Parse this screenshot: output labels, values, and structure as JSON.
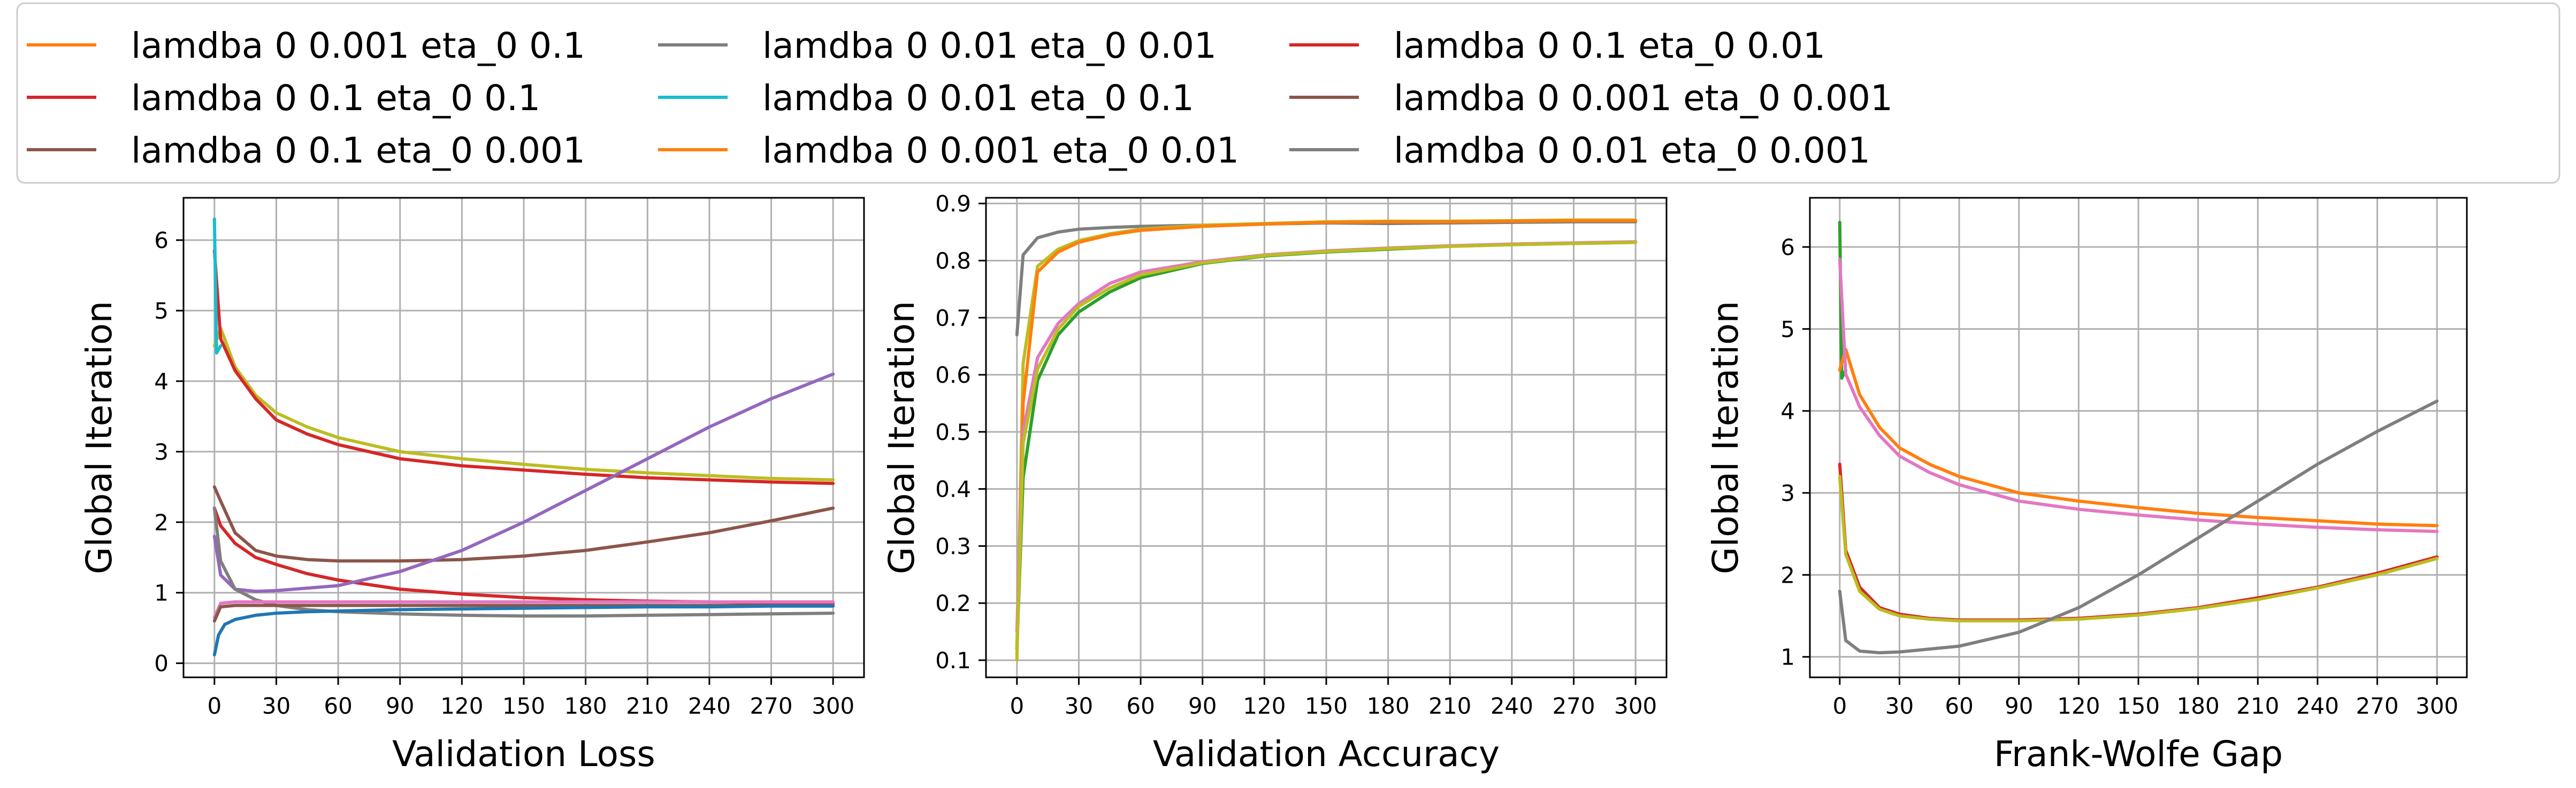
{
  "legend": {
    "placement": "top",
    "entries": [
      {
        "label": "lamdba 0 0.001 eta_0 0.1",
        "color": "#ff7f0e"
      },
      {
        "label": "lamdba 0 0.1 eta_0 0.1",
        "color": "#d62728"
      },
      {
        "label": "lamdba 0 0.1 eta_0 0.001",
        "color": "#8c564b"
      },
      {
        "label": "lamdba 0 0.01 eta_0 0.01",
        "color": "#7f7f7f"
      },
      {
        "label": "lamdba 0 0.01 eta_0 0.1",
        "color": "#17becf"
      },
      {
        "label": "lamdba 0 0.001 eta_0 0.01",
        "color": "#ff7f0e"
      },
      {
        "label": "lamdba 0 0.1 eta_0 0.01",
        "color": "#d62728"
      },
      {
        "label": "lamdba 0 0.001 eta_0 0.001",
        "color": "#8c564b"
      },
      {
        "label": "lamdba 0 0.01 eta_0 0.001",
        "color": "#7f7f7f"
      }
    ]
  },
  "chart_data": [
    {
      "type": "line",
      "xlabel": "Validation Loss",
      "ylabel": "Global Iteration",
      "xlim": [
        -15,
        315
      ],
      "ylim": [
        -0.2,
        6.6
      ],
      "xticks": [
        0,
        30,
        60,
        90,
        120,
        150,
        180,
        210,
        240,
        270,
        300
      ],
      "yticks": [
        0,
        1,
        2,
        3,
        4,
        5,
        6
      ],
      "grid": true,
      "series": [
        {
          "color": "#bcbd22",
          "x": [
            0,
            3,
            10,
            20,
            30,
            45,
            60,
            90,
            120,
            150,
            180,
            210,
            240,
            270,
            300
          ],
          "y": [
            4.5,
            4.75,
            4.2,
            3.8,
            3.55,
            3.35,
            3.2,
            3.0,
            2.9,
            2.82,
            2.75,
            2.7,
            2.66,
            2.62,
            2.6
          ]
        },
        {
          "color": "#d62728",
          "x": [
            0,
            3,
            10,
            20,
            30,
            45,
            60,
            90,
            120,
            150,
            180,
            210,
            240,
            270,
            300
          ],
          "y": [
            5.85,
            4.6,
            4.15,
            3.75,
            3.45,
            3.25,
            3.1,
            2.9,
            2.8,
            2.74,
            2.68,
            2.63,
            2.6,
            2.57,
            2.55
          ]
        },
        {
          "color": "#17becf",
          "x": [
            0,
            1,
            3
          ],
          "y": [
            6.3,
            4.4,
            4.5
          ]
        },
        {
          "color": "#8c564b",
          "x": [
            0,
            3,
            10,
            20,
            30,
            45,
            60,
            90,
            120,
            150,
            180,
            210,
            240,
            270,
            300
          ],
          "y": [
            2.5,
            2.3,
            1.85,
            1.6,
            1.52,
            1.47,
            1.45,
            1.45,
            1.47,
            1.52,
            1.6,
            1.72,
            1.85,
            2.02,
            2.2
          ]
        },
        {
          "color": "#d62728",
          "x": [
            0,
            3,
            10,
            20,
            30,
            45,
            60,
            90,
            120,
            150,
            180,
            210,
            240,
            270,
            300
          ],
          "y": [
            2.2,
            1.95,
            1.7,
            1.5,
            1.4,
            1.27,
            1.18,
            1.05,
            0.98,
            0.93,
            0.9,
            0.88,
            0.87,
            0.86,
            0.85
          ]
        },
        {
          "color": "#9467bd",
          "x": [
            0,
            3,
            10,
            20,
            30,
            60,
            90,
            120,
            150,
            180,
            210,
            240,
            270,
            300
          ],
          "y": [
            1.8,
            1.25,
            1.05,
            1.02,
            1.03,
            1.1,
            1.3,
            1.6,
            2.0,
            2.45,
            2.9,
            3.35,
            3.75,
            4.1
          ]
        },
        {
          "color": "#7f7f7f",
          "x": [
            0,
            3,
            10,
            20,
            30,
            45,
            60,
            90,
            120,
            150,
            180,
            210,
            240,
            270,
            300
          ],
          "y": [
            2.2,
            1.45,
            1.05,
            0.9,
            0.82,
            0.76,
            0.73,
            0.7,
            0.68,
            0.67,
            0.67,
            0.68,
            0.69,
            0.7,
            0.71
          ]
        },
        {
          "color": "#e377c2",
          "x": [
            0,
            3,
            10,
            20,
            30,
            60,
            90,
            120,
            150,
            180,
            210,
            240,
            270,
            300
          ],
          "y": [
            0.65,
            0.85,
            0.87,
            0.87,
            0.87,
            0.87,
            0.87,
            0.87,
            0.87,
            0.87,
            0.87,
            0.87,
            0.87,
            0.87
          ]
        },
        {
          "color": "#8c564b",
          "x": [
            0,
            3,
            10,
            20,
            30,
            60,
            90,
            120,
            150,
            180,
            210,
            240,
            270,
            300
          ],
          "y": [
            0.6,
            0.8,
            0.82,
            0.82,
            0.82,
            0.82,
            0.82,
            0.82,
            0.82,
            0.82,
            0.82,
            0.82,
            0.82,
            0.82
          ]
        },
        {
          "color": "#1f77b4",
          "x": [
            0,
            2,
            5,
            10,
            20,
            30,
            45,
            60,
            90,
            120,
            150,
            180,
            210,
            240,
            270,
            300
          ],
          "y": [
            0.12,
            0.4,
            0.55,
            0.62,
            0.68,
            0.71,
            0.73,
            0.74,
            0.76,
            0.77,
            0.78,
            0.79,
            0.8,
            0.8,
            0.81,
            0.81
          ]
        }
      ]
    },
    {
      "type": "line",
      "xlabel": "Validation Accuracy",
      "ylabel": "Global Iteration",
      "xlim": [
        -15,
        315
      ],
      "ylim": [
        0.07,
        0.91
      ],
      "xticks": [
        0,
        30,
        60,
        90,
        120,
        150,
        180,
        210,
        240,
        270,
        300
      ],
      "yticks": [
        0.1,
        0.2,
        0.3,
        0.4,
        0.5,
        0.6,
        0.7,
        0.8,
        0.9
      ],
      "grid": true,
      "series": [
        {
          "color": "#7f7f7f",
          "x": [
            0,
            3,
            10,
            20,
            30,
            45,
            60,
            90,
            120,
            150,
            180,
            210,
            240,
            270,
            300
          ],
          "y": [
            0.67,
            0.81,
            0.84,
            0.85,
            0.855,
            0.858,
            0.86,
            0.862,
            0.864,
            0.866,
            0.865,
            0.866,
            0.867,
            0.868,
            0.868
          ]
        },
        {
          "color": "#bcbd22",
          "x": [
            0,
            3,
            10,
            20,
            30,
            45,
            60,
            90,
            120,
            150,
            180,
            210,
            240,
            270,
            300
          ],
          "y": [
            0.1,
            0.62,
            0.79,
            0.82,
            0.835,
            0.847,
            0.855,
            0.862,
            0.865,
            0.868,
            0.869,
            0.869,
            0.87,
            0.871,
            0.871
          ]
        },
        {
          "color": "#ff7f0e",
          "x": [
            0,
            3,
            10,
            20,
            30,
            45,
            60,
            90,
            120,
            150,
            180,
            210,
            240,
            270,
            300
          ],
          "y": [
            0.12,
            0.55,
            0.78,
            0.815,
            0.832,
            0.845,
            0.853,
            0.86,
            0.864,
            0.867,
            0.868,
            0.868,
            0.869,
            0.87,
            0.87
          ]
        },
        {
          "color": "#2ca02c",
          "x": [
            0,
            3,
            10,
            20,
            30,
            45,
            60,
            90,
            120,
            150,
            180,
            210,
            240,
            270,
            300
          ],
          "y": [
            0.12,
            0.42,
            0.59,
            0.67,
            0.71,
            0.745,
            0.77,
            0.795,
            0.808,
            0.815,
            0.82,
            0.825,
            0.828,
            0.83,
            0.832
          ]
        },
        {
          "color": "#e377c2",
          "x": [
            0,
            3,
            10,
            20,
            30,
            45,
            60,
            90,
            120,
            150,
            180,
            210,
            240,
            270,
            300
          ],
          "y": [
            0.15,
            0.5,
            0.63,
            0.69,
            0.725,
            0.76,
            0.78,
            0.798,
            0.81,
            0.817,
            0.822,
            0.826,
            0.829,
            0.831,
            0.833
          ]
        },
        {
          "color": "#bcbd22",
          "x": [
            0,
            3,
            10,
            20,
            30,
            45,
            60,
            90,
            120,
            150,
            180,
            210,
            240,
            270,
            300
          ],
          "y": [
            0.11,
            0.48,
            0.61,
            0.68,
            0.72,
            0.752,
            0.775,
            0.796,
            0.809,
            0.816,
            0.821,
            0.825,
            0.828,
            0.83,
            0.832
          ]
        }
      ]
    },
    {
      "type": "line",
      "xlabel": "Frank-Wolfe Gap",
      "ylabel": "Global Iteration",
      "xlim": [
        -15,
        315
      ],
      "ylim": [
        0.75,
        6.6
      ],
      "xticks": [
        0,
        30,
        60,
        90,
        120,
        150,
        180,
        210,
        240,
        270,
        300
      ],
      "yticks": [
        1,
        2,
        3,
        4,
        5,
        6
      ],
      "grid": true,
      "series": [
        {
          "color": "#2ca02c",
          "x": [
            0,
            1,
            3
          ],
          "y": [
            6.3,
            4.4,
            4.5
          ]
        },
        {
          "color": "#ff7f0e",
          "x": [
            0,
            3,
            10,
            20,
            30,
            45,
            60,
            90,
            120,
            150,
            180,
            210,
            240,
            270,
            300
          ],
          "y": [
            4.5,
            4.75,
            4.2,
            3.8,
            3.55,
            3.35,
            3.2,
            3.0,
            2.9,
            2.82,
            2.75,
            2.7,
            2.66,
            2.62,
            2.6
          ]
        },
        {
          "color": "#e377c2",
          "x": [
            0,
            3,
            10,
            20,
            30,
            45,
            60,
            90,
            120,
            150,
            180,
            210,
            240,
            270,
            300
          ],
          "y": [
            5.85,
            4.45,
            4.05,
            3.7,
            3.45,
            3.25,
            3.1,
            2.9,
            2.8,
            2.73,
            2.67,
            2.62,
            2.58,
            2.55,
            2.53
          ]
        },
        {
          "color": "#d62728",
          "x": [
            0,
            3,
            10,
            20,
            30,
            45,
            60,
            90,
            120,
            150,
            180,
            210,
            240,
            270,
            300
          ],
          "y": [
            3.35,
            2.3,
            1.85,
            1.6,
            1.52,
            1.47,
            1.45,
            1.45,
            1.47,
            1.52,
            1.6,
            1.72,
            1.85,
            2.02,
            2.22
          ]
        },
        {
          "color": "#bcbd22",
          "x": [
            0,
            3,
            10,
            20,
            30,
            45,
            60,
            90,
            120,
            150,
            180,
            210,
            240,
            270,
            300
          ],
          "y": [
            3.2,
            2.25,
            1.8,
            1.58,
            1.5,
            1.46,
            1.44,
            1.44,
            1.46,
            1.51,
            1.59,
            1.7,
            1.84,
            2.0,
            2.2
          ]
        },
        {
          "color": "#7f7f7f",
          "x": [
            0,
            3,
            10,
            20,
            30,
            60,
            90,
            120,
            150,
            180,
            210,
            240,
            270,
            300
          ],
          "y": [
            1.8,
            1.2,
            1.07,
            1.05,
            1.06,
            1.13,
            1.3,
            1.6,
            2.0,
            2.45,
            2.9,
            3.35,
            3.75,
            4.12
          ]
        }
      ]
    }
  ]
}
